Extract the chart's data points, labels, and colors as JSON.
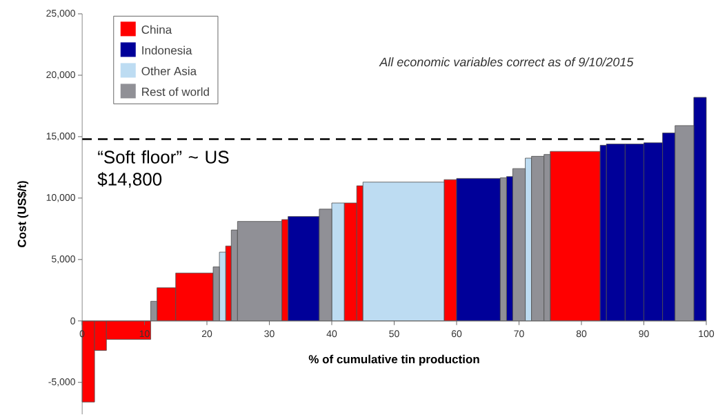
{
  "chart_data": {
    "type": "histogram",
    "xlabel": "% of cumulative tin production",
    "ylabel": "Cost (US$/t)",
    "bins": [
      0,
      2,
      3.9,
      11,
      12,
      15,
      21,
      22,
      23,
      23.9,
      24.9,
      32,
      33,
      38,
      40,
      42,
      44,
      45,
      58,
      60,
      67,
      68,
      69,
      71,
      72,
      74,
      75,
      83,
      84,
      87,
      90,
      93,
      95,
      98,
      100
    ],
    "series": [
      {
        "name": "China",
        "color": "#ff0000",
        "values": [
          -6600,
          -2400,
          -1500,
          null,
          2700,
          3900,
          null,
          null,
          6100,
          null,
          null,
          8250,
          null,
          null,
          null,
          9600,
          11000,
          null,
          11500,
          null,
          null,
          null,
          null,
          null,
          null,
          null,
          13800,
          null,
          null,
          null,
          null,
          null,
          null,
          null
        ]
      },
      {
        "name": "Indonesia",
        "color": "#000099",
        "values": [
          null,
          null,
          null,
          null,
          null,
          null,
          null,
          null,
          null,
          null,
          null,
          null,
          8500,
          null,
          null,
          null,
          null,
          null,
          null,
          11600,
          null,
          11750,
          null,
          null,
          null,
          null,
          null,
          14300,
          14400,
          14400,
          14500,
          15300,
          null,
          18200
        ]
      },
      {
        "name": "Other Asia",
        "color": "#bddcf2",
        "values": [
          null,
          null,
          null,
          null,
          null,
          null,
          null,
          5600,
          null,
          null,
          null,
          null,
          null,
          null,
          9600,
          null,
          null,
          11300,
          null,
          null,
          null,
          null,
          null,
          13250,
          null,
          null,
          null,
          null,
          null,
          null,
          null,
          null,
          null,
          null
        ]
      },
      {
        "name": "Rest of world",
        "color": "#909096",
        "values": [
          null,
          null,
          null,
          1600,
          null,
          null,
          4400,
          null,
          null,
          7400,
          8100,
          null,
          null,
          9100,
          null,
          null,
          null,
          null,
          null,
          null,
          11650,
          null,
          12400,
          null,
          13400,
          13550,
          null,
          null,
          null,
          null,
          null,
          null,
          15900,
          null
        ]
      }
    ],
    "xlim": [
      0,
      100
    ],
    "xticks": [
      0,
      10,
      20,
      30,
      40,
      50,
      60,
      70,
      80,
      90,
      100
    ],
    "ylim": [
      -7600,
      25000
    ],
    "yticks": [
      {
        "value": -5000,
        "label": "-5,000"
      },
      0,
      {
        "value": 5000,
        "label": "5,000"
      },
      {
        "value": 10000,
        "label": "10,000"
      },
      {
        "value": 15000,
        "label": "15,000"
      },
      {
        "value": 20000,
        "label": "20,000"
      },
      {
        "value": 25000,
        "label": "25,000"
      }
    ],
    "ref_lines": [
      {
        "axis": "y",
        "value": 14800,
        "label": "“Soft floor” ~ US $14,800",
        "color": "#000000",
        "line_style": "dashed"
      }
    ],
    "annotations": [
      "All economic variables correct as of 9/10/2015"
    ],
    "legend": "top left",
    "grid": false
  }
}
